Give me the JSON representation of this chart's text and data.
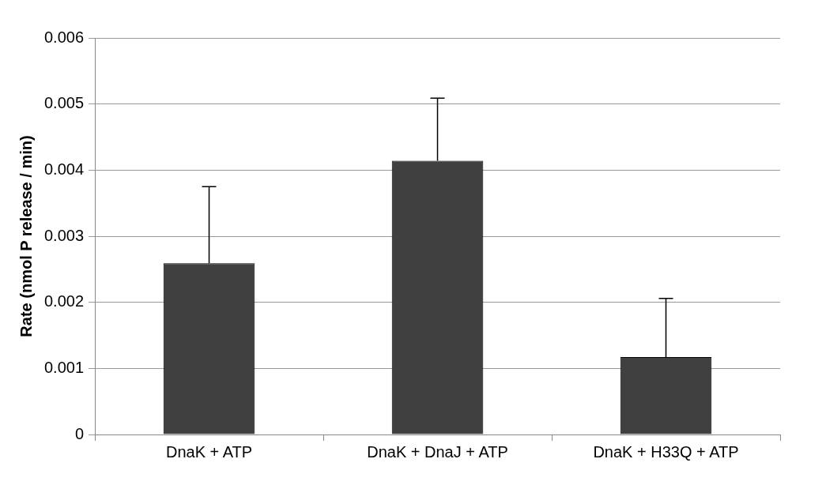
{
  "chart_data": {
    "type": "bar",
    "ylabel": "Rate (nmol P release / min)",
    "categories": [
      "DnaK + ATP",
      "DnaK + DnaJ + ATP",
      "DnaK + H33Q + ATP"
    ],
    "values": [
      0.00259,
      0.00414,
      0.00117
    ],
    "errors": [
      [
        0.00259,
        0.00375
      ],
      [
        0.00414,
        0.00509
      ],
      [
        0.00117,
        0.00206
      ]
    ],
    "color": "#404040",
    "ylim": [
      0,
      0.006
    ],
    "yticks": [
      0,
      0.001,
      0.002,
      0.003,
      0.004,
      0.005,
      0.006
    ],
    "grid": "y",
    "legend": false
  }
}
